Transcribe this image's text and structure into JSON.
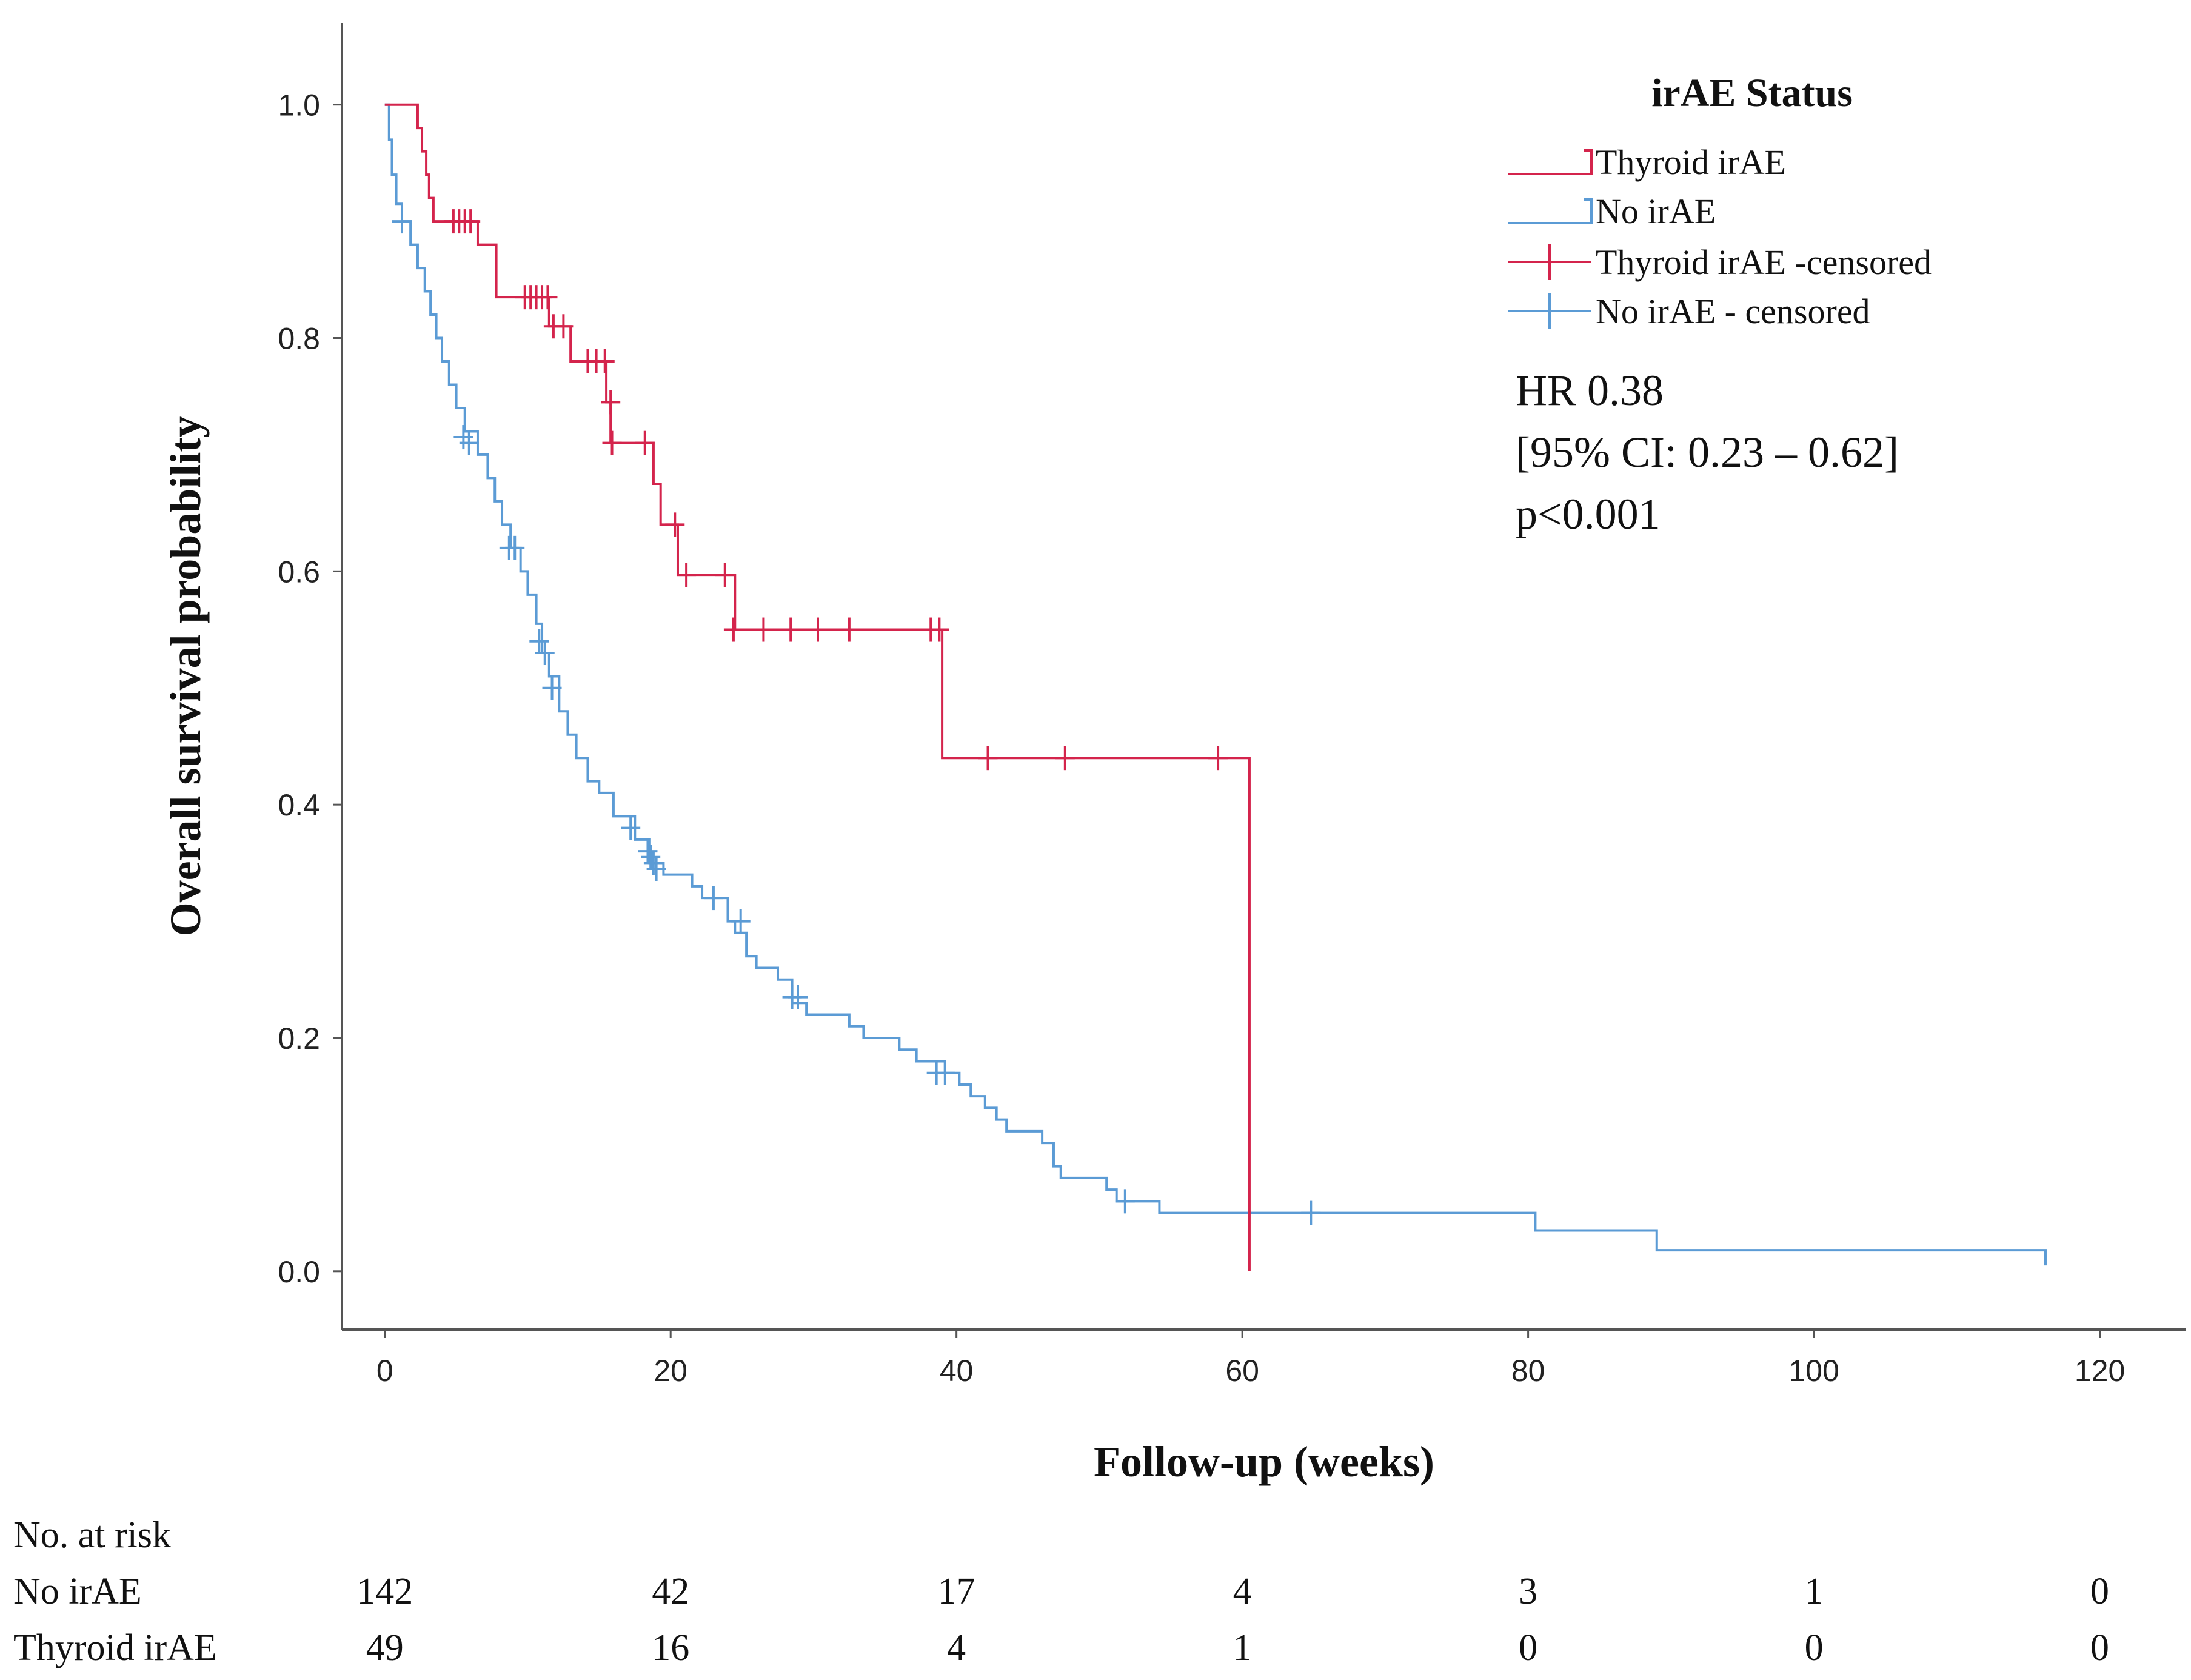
{
  "chart_data": {
    "type": "line",
    "subtype": "kaplan-meier",
    "xlabel": "Follow-up (weeks)",
    "ylabel": "Overall survival probability",
    "xlim": [
      -3,
      126
    ],
    "ylim": [
      -0.05,
      1.07
    ],
    "xticks": [
      "0",
      "20",
      "40",
      "60",
      "80",
      "100",
      "120"
    ],
    "yticks": [
      "0.0",
      "0.2",
      "0.4",
      "0.6",
      "0.8",
      "1.0"
    ],
    "legend": {
      "title": "irAE Status",
      "position": "top-right",
      "entries": [
        "Thyroid irAE",
        "No irAE",
        "Thyroid irAE -censored",
        "No irAE - censored"
      ]
    },
    "annotation": [
      "HR 0.38",
      "[95% CI: 0.23 – 0.62]",
      "p<0.001"
    ],
    "series": [
      {
        "name": "Thyroid irAE",
        "color": "#d4244c",
        "steps": [
          [
            0,
            1.0
          ],
          [
            2.3,
            0.98
          ],
          [
            2.6,
            0.96
          ],
          [
            2.9,
            0.94
          ],
          [
            3.1,
            0.92
          ],
          [
            3.4,
            0.9
          ],
          [
            6.5,
            0.88
          ],
          [
            7.8,
            0.835
          ],
          [
            11.5,
            0.81
          ],
          [
            13.0,
            0.78
          ],
          [
            15.5,
            0.745
          ],
          [
            15.8,
            0.71
          ],
          [
            18.8,
            0.675
          ],
          [
            19.3,
            0.64
          ],
          [
            20.5,
            0.597
          ],
          [
            24.5,
            0.55
          ],
          [
            39.0,
            0.44
          ],
          [
            60.5,
            0.44
          ],
          [
            60.5,
            0.0
          ]
        ],
        "end_x": 60.5,
        "censored": [
          [
            4.8,
            0.9
          ],
          [
            5.2,
            0.9
          ],
          [
            5.6,
            0.9
          ],
          [
            6.0,
            0.9
          ],
          [
            9.8,
            0.835
          ],
          [
            10.2,
            0.835
          ],
          [
            10.6,
            0.835
          ],
          [
            11.0,
            0.835
          ],
          [
            11.4,
            0.835
          ],
          [
            11.8,
            0.81
          ],
          [
            12.5,
            0.81
          ],
          [
            14.2,
            0.78
          ],
          [
            14.8,
            0.78
          ],
          [
            15.4,
            0.78
          ],
          [
            15.8,
            0.745
          ],
          [
            15.9,
            0.71
          ],
          [
            18.2,
            0.71
          ],
          [
            20.3,
            0.64
          ],
          [
            21.1,
            0.597
          ],
          [
            23.8,
            0.597
          ],
          [
            24.4,
            0.55
          ],
          [
            26.5,
            0.55
          ],
          [
            28.4,
            0.55
          ],
          [
            30.3,
            0.55
          ],
          [
            32.5,
            0.55
          ],
          [
            38.2,
            0.55
          ],
          [
            38.8,
            0.55
          ],
          [
            42.2,
            0.44
          ],
          [
            47.6,
            0.44
          ],
          [
            58.3,
            0.44
          ]
        ]
      },
      {
        "name": "No irAE",
        "color": "#5b9bd5",
        "steps": [
          [
            0,
            1.0
          ],
          [
            0.3,
            0.97
          ],
          [
            0.5,
            0.94
          ],
          [
            0.8,
            0.915
          ],
          [
            1.2,
            0.9
          ],
          [
            1.8,
            0.88
          ],
          [
            2.3,
            0.86
          ],
          [
            2.8,
            0.84
          ],
          [
            3.2,
            0.82
          ],
          [
            3.6,
            0.8
          ],
          [
            4.0,
            0.78
          ],
          [
            4.5,
            0.76
          ],
          [
            5.0,
            0.74
          ],
          [
            5.6,
            0.72
          ],
          [
            6.5,
            0.7
          ],
          [
            7.2,
            0.68
          ],
          [
            7.7,
            0.66
          ],
          [
            8.2,
            0.64
          ],
          [
            8.8,
            0.62
          ],
          [
            9.5,
            0.6
          ],
          [
            10.0,
            0.58
          ],
          [
            10.6,
            0.555
          ],
          [
            11.0,
            0.53
          ],
          [
            11.5,
            0.51
          ],
          [
            12.2,
            0.48
          ],
          [
            12.8,
            0.46
          ],
          [
            13.4,
            0.44
          ],
          [
            14.2,
            0.42
          ],
          [
            15.0,
            0.41
          ],
          [
            16.0,
            0.39
          ],
          [
            17.5,
            0.37
          ],
          [
            18.5,
            0.35
          ],
          [
            19.5,
            0.34
          ],
          [
            21.5,
            0.33
          ],
          [
            22.2,
            0.32
          ],
          [
            24.0,
            0.3
          ],
          [
            24.5,
            0.29
          ],
          [
            25.3,
            0.27
          ],
          [
            26.0,
            0.26
          ],
          [
            27.5,
            0.25
          ],
          [
            28.5,
            0.23
          ],
          [
            29.5,
            0.22
          ],
          [
            32.5,
            0.21
          ],
          [
            33.5,
            0.2
          ],
          [
            36.0,
            0.19
          ],
          [
            37.2,
            0.18
          ],
          [
            39.2,
            0.17
          ],
          [
            40.2,
            0.16
          ],
          [
            41.0,
            0.15
          ],
          [
            42.0,
            0.14
          ],
          [
            42.8,
            0.13
          ],
          [
            43.5,
            0.12
          ],
          [
            46.0,
            0.11
          ],
          [
            46.8,
            0.09
          ],
          [
            47.3,
            0.08
          ],
          [
            50.5,
            0.07
          ],
          [
            51.2,
            0.06
          ],
          [
            54.2,
            0.05
          ],
          [
            80.5,
            0.035
          ],
          [
            89.0,
            0.018
          ],
          [
            116.2,
            0.018
          ],
          [
            116.2,
            0.005
          ]
        ],
        "end_x": 116.2,
        "censored": [
          [
            1.2,
            0.9
          ],
          [
            5.5,
            0.715
          ],
          [
            5.9,
            0.71
          ],
          [
            8.7,
            0.62
          ],
          [
            9.1,
            0.62
          ],
          [
            10.8,
            0.54
          ],
          [
            11.2,
            0.53
          ],
          [
            11.7,
            0.5
          ],
          [
            17.2,
            0.38
          ],
          [
            18.4,
            0.36
          ],
          [
            18.6,
            0.355
          ],
          [
            18.8,
            0.35
          ],
          [
            19.0,
            0.345
          ],
          [
            23.0,
            0.32
          ],
          [
            24.9,
            0.3
          ],
          [
            28.5,
            0.235
          ],
          [
            28.9,
            0.235
          ],
          [
            38.6,
            0.17
          ],
          [
            39.2,
            0.17
          ],
          [
            51.8,
            0.06
          ],
          [
            64.8,
            0.05
          ]
        ]
      }
    ],
    "risk_table": {
      "title": "No. at risk",
      "times": [
        "0",
        "20",
        "40",
        "60",
        "80",
        "100",
        "120"
      ],
      "rows": [
        {
          "label": "No irAE",
          "values": [
            "142",
            "42",
            "17",
            "4",
            "3",
            "1",
            "0"
          ]
        },
        {
          "label": "Thyroid irAE",
          "values": [
            "49",
            "16",
            "4",
            "1",
            "0",
            "0",
            "0"
          ]
        }
      ]
    }
  }
}
